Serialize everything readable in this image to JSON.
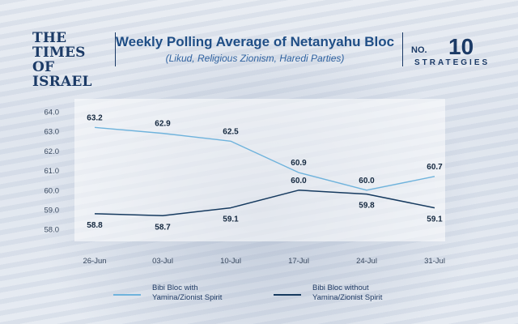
{
  "header": {
    "logo_line1": "THE TIMES",
    "logo_line2": "OF ISRAEL",
    "title": "Weekly Polling Average of Netanyahu Bloc",
    "subtitle": "(Likud, Religious Zionism, Haredi Parties)",
    "brand_no": "NO.",
    "brand_number": "10",
    "brand_sub": "STRATEGIES"
  },
  "chart_data": {
    "type": "line",
    "title": "Weekly Polling Average of Netanyahu Bloc",
    "subtitle": "(Likud, Religious Zionism, Haredi Parties)",
    "xlabel": "",
    "ylabel": "",
    "categories": [
      "26-Jun",
      "03-Jul",
      "10-Jul",
      "17-Jul",
      "24-Jul",
      "31-Jul"
    ],
    "y_ticks": [
      "64.0",
      "63.0",
      "62.0",
      "61.0",
      "60.0",
      "59.0",
      "58.0"
    ],
    "ylim": [
      57.5,
      64.3
    ],
    "grid": false,
    "legend_position": "bottom",
    "series": [
      {
        "name": "Bibi Bloc with Yamina/Zionist Spirit",
        "values": [
          63.2,
          62.9,
          62.5,
          60.9,
          60.0,
          60.7
        ],
        "labels": [
          "63.2",
          "62.9",
          "62.5",
          "60.9",
          "60.0",
          "60.7"
        ],
        "color": "#6fb3dc"
      },
      {
        "name": "Bibi Bloc without Yamina/Zionist Spirit",
        "values": [
          58.8,
          58.7,
          59.1,
          60.0,
          59.8,
          59.1
        ],
        "labels": [
          "58.8",
          "58.7",
          "59.1",
          "60.0",
          "59.8",
          "59.1"
        ],
        "color": "#163a5f"
      }
    ]
  },
  "legend": {
    "item1_line1": "Bibi Bloc with",
    "item1_line2": "Yamina/Zionist Spirit",
    "item2_line1": "Bibi Bloc without",
    "item2_line2": "Yamina/Zionist Spirit"
  }
}
